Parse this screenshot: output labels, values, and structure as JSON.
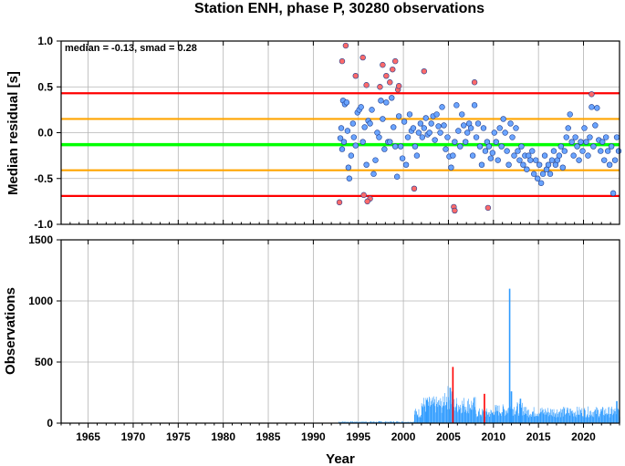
{
  "chart_data": [
    {
      "type": "scatter",
      "title": "Station ENH, phase P, 30280 observations",
      "xlabel": "",
      "ylabel": "Median residual [s]",
      "annotation": "median = -0.13, smad = 0.28",
      "xlim": [
        1962,
        2024
      ],
      "ylim": [
        -1.0,
        1.0
      ],
      "yticks": [
        "1.0",
        "0.5",
        "0.0",
        "-0.5",
        "-1.0"
      ],
      "grid": true,
      "reference_lines": [
        {
          "value": 0.43,
          "color": "#ff0000"
        },
        {
          "value": 0.15,
          "color": "#ffa500"
        },
        {
          "value": -0.13,
          "color": "#00ff00"
        },
        {
          "value": -0.41,
          "color": "#ffa500"
        },
        {
          "value": -0.69,
          "color": "#ff0000"
        }
      ],
      "series": [
        {
          "color": "#ff6a6a",
          "points": [
            [
              1992.9,
              -0.76
            ],
            [
              1993.6,
              0.95
            ],
            [
              1993.2,
              0.78
            ],
            [
              1994.7,
              0.62
            ],
            [
              1995.5,
              0.82
            ],
            [
              1995.9,
              0.52
            ],
            [
              1996.3,
              -0.72
            ],
            [
              1996.0,
              -0.75
            ],
            [
              1997.4,
              0.5
            ],
            [
              1997.7,
              0.74
            ],
            [
              1998.1,
              0.62
            ],
            [
              1998.5,
              0.55
            ],
            [
              1998.8,
              0.69
            ],
            [
              1999.1,
              0.78
            ],
            [
              1999.4,
              0.47
            ],
            [
              1995.6,
              -0.68
            ],
            [
              1999.5,
              0.51
            ],
            [
              2001.2,
              -0.61
            ],
            [
              2002.3,
              0.67
            ],
            [
              2005.6,
              -0.81
            ],
            [
              2005.7,
              -0.85
            ],
            [
              2007.9,
              0.55
            ],
            [
              2009.4,
              -0.82
            ],
            [
              2020.9,
              0.42
            ]
          ]
        },
        {
          "color": "#6aa4ff",
          "points": [
            [
              1993.0,
              -0.06
            ],
            [
              1993.1,
              0.05
            ],
            [
              1993.2,
              -0.18
            ],
            [
              1993.3,
              0.35
            ],
            [
              1993.4,
              -0.1
            ],
            [
              1993.5,
              0.31
            ],
            [
              1993.7,
              0.33
            ],
            [
              1993.8,
              0.02
            ],
            [
              1993.9,
              -0.38
            ],
            [
              1994.0,
              -0.5
            ],
            [
              1994.2,
              -0.25
            ],
            [
              1994.4,
              0.1
            ],
            [
              1994.5,
              -0.05
            ],
            [
              1994.7,
              -0.14
            ],
            [
              1994.9,
              0.22
            ],
            [
              1995.1,
              0.25
            ],
            [
              1995.3,
              0.28
            ],
            [
              1995.5,
              -0.1
            ],
            [
              1995.7,
              0.06
            ],
            [
              1995.9,
              -0.35
            ],
            [
              1996.1,
              0.13
            ],
            [
              1996.3,
              0.1
            ],
            [
              1996.5,
              0.25
            ],
            [
              1996.7,
              -0.45
            ],
            [
              1996.9,
              -0.3
            ],
            [
              1997.1,
              0.0
            ],
            [
              1997.3,
              -0.05
            ],
            [
              1997.5,
              0.35
            ],
            [
              1997.7,
              0.15
            ],
            [
              1997.9,
              -0.18
            ],
            [
              1998.1,
              0.33
            ],
            [
              1998.3,
              -0.1
            ],
            [
              1998.5,
              -0.1
            ],
            [
              1998.7,
              0.38
            ],
            [
              1998.9,
              0.06
            ],
            [
              1999.1,
              -0.15
            ],
            [
              1999.3,
              -0.48
            ],
            [
              1999.5,
              0.18
            ],
            [
              1999.7,
              -0.15
            ],
            [
              1999.9,
              -0.28
            ],
            [
              2000.1,
              0.12
            ],
            [
              2000.3,
              -0.35
            ],
            [
              2000.5,
              -0.05
            ],
            [
              2000.7,
              0.2
            ],
            [
              2000.9,
              0.02
            ],
            [
              2001.1,
              0.05
            ],
            [
              2001.3,
              -0.15
            ],
            [
              2001.5,
              -0.25
            ],
            [
              2001.7,
              0.0
            ],
            [
              2001.9,
              0.1
            ],
            [
              2002.1,
              -0.05
            ],
            [
              2002.3,
              0.05
            ],
            [
              2002.5,
              0.16
            ],
            [
              2002.7,
              -0.02
            ],
            [
              2002.9,
              0.0
            ],
            [
              2003.1,
              0.1
            ],
            [
              2003.3,
              0.18
            ],
            [
              2003.5,
              -0.08
            ],
            [
              2003.7,
              0.2
            ],
            [
              2003.9,
              0.07
            ],
            [
              2004.1,
              0.0
            ],
            [
              2004.3,
              0.28
            ],
            [
              2004.5,
              0.08
            ],
            [
              2004.7,
              -0.18
            ],
            [
              2004.9,
              -0.05
            ],
            [
              2005.1,
              -0.26
            ],
            [
              2005.3,
              -0.38
            ],
            [
              2005.5,
              -0.25
            ],
            [
              2005.7,
              -0.1
            ],
            [
              2005.9,
              0.3
            ],
            [
              2006.1,
              0.02
            ],
            [
              2006.3,
              -0.15
            ],
            [
              2006.5,
              0.2
            ],
            [
              2006.7,
              0.08
            ],
            [
              2006.9,
              -0.1
            ],
            [
              2007.1,
              0.0
            ],
            [
              2007.3,
              0.1
            ],
            [
              2007.5,
              0.05
            ],
            [
              2007.7,
              -0.25
            ],
            [
              2007.9,
              0.3
            ],
            [
              2008.1,
              -0.05
            ],
            [
              2008.3,
              0.1
            ],
            [
              2008.5,
              -0.15
            ],
            [
              2008.7,
              -0.35
            ],
            [
              2008.9,
              0.05
            ],
            [
              2009.1,
              -0.2
            ],
            [
              2009.3,
              -0.1
            ],
            [
              2009.5,
              -0.15
            ],
            [
              2009.7,
              -0.28
            ],
            [
              2009.9,
              -0.22
            ],
            [
              2010.1,
              0.0
            ],
            [
              2010.3,
              -0.1
            ],
            [
              2010.5,
              -0.3
            ],
            [
              2010.7,
              0.05
            ],
            [
              2010.9,
              -0.15
            ],
            [
              2011.1,
              0.15
            ],
            [
              2011.3,
              0.0
            ],
            [
              2011.5,
              -0.2
            ],
            [
              2011.7,
              -0.35
            ],
            [
              2011.9,
              0.1
            ],
            [
              2012.1,
              -0.05
            ],
            [
              2012.3,
              -0.25
            ],
            [
              2012.5,
              0.05
            ],
            [
              2012.7,
              -0.2
            ],
            [
              2012.9,
              -0.3
            ],
            [
              2013.1,
              -0.15
            ],
            [
              2013.3,
              -0.35
            ],
            [
              2013.5,
              -0.25
            ],
            [
              2013.7,
              -0.4
            ],
            [
              2013.9,
              -0.25
            ],
            [
              2014.1,
              -0.3
            ],
            [
              2014.3,
              -0.2
            ],
            [
              2014.5,
              -0.45
            ],
            [
              2014.7,
              -0.3
            ],
            [
              2014.9,
              -0.5
            ],
            [
              2015.1,
              -0.35
            ],
            [
              2015.3,
              -0.55
            ],
            [
              2015.5,
              -0.45
            ],
            [
              2015.7,
              -0.25
            ],
            [
              2015.9,
              -0.4
            ],
            [
              2016.1,
              -0.35
            ],
            [
              2016.3,
              -0.45
            ],
            [
              2016.5,
              -0.3
            ],
            [
              2016.7,
              -0.2
            ],
            [
              2016.9,
              -0.35
            ],
            [
              2017.1,
              -0.3
            ],
            [
              2017.3,
              -0.25
            ],
            [
              2017.5,
              -0.15
            ],
            [
              2017.7,
              -0.38
            ],
            [
              2017.9,
              -0.2
            ],
            [
              2018.1,
              -0.05
            ],
            [
              2018.3,
              0.05
            ],
            [
              2018.5,
              0.2
            ],
            [
              2018.7,
              -0.1
            ],
            [
              2018.9,
              -0.25
            ],
            [
              2019.1,
              -0.05
            ],
            [
              2019.3,
              -0.15
            ],
            [
              2019.5,
              -0.3
            ],
            [
              2019.7,
              -0.1
            ],
            [
              2019.9,
              -0.2
            ],
            [
              2020.1,
              0.05
            ],
            [
              2020.3,
              -0.1
            ],
            [
              2020.5,
              -0.25
            ],
            [
              2020.7,
              -0.05
            ],
            [
              2020.9,
              0.28
            ],
            [
              2021.1,
              -0.15
            ],
            [
              2021.3,
              0.08
            ],
            [
              2021.5,
              0.27
            ],
            [
              2021.7,
              -0.08
            ],
            [
              2021.9,
              -0.2
            ],
            [
              2022.1,
              -0.1
            ],
            [
              2022.3,
              -0.3
            ],
            [
              2022.5,
              -0.05
            ],
            [
              2022.7,
              -0.2
            ],
            [
              2022.9,
              -0.35
            ],
            [
              2023.1,
              -0.15
            ],
            [
              2023.3,
              -0.66
            ],
            [
              2023.5,
              -0.3
            ],
            [
              2023.7,
              -0.05
            ],
            [
              2023.9,
              -0.2
            ]
          ]
        }
      ]
    },
    {
      "type": "bar",
      "title": "",
      "xlabel": "Year",
      "ylabel": "Observations",
      "xlim": [
        1962,
        2024
      ],
      "ylim": [
        0,
        1500
      ],
      "xticks": [
        "1965",
        "1970",
        "1975",
        "1980",
        "1985",
        "1990",
        "1995",
        "2000",
        "2005",
        "2010",
        "2015",
        "2020"
      ],
      "yticks": [
        "1500",
        "1000",
        "500",
        "0"
      ],
      "grid": true,
      "bar_color": "#2e9bff",
      "highlight_color": "#ff0000",
      "segments": [
        {
          "start": 1992.8,
          "end": 2001.2,
          "level": 12
        },
        {
          "start": 2001.2,
          "end": 2002.0,
          "level": 95
        },
        {
          "start": 2002.0,
          "end": 2004.5,
          "level": 170
        },
        {
          "start": 2004.5,
          "end": 2005.5,
          "level": 240
        },
        {
          "start": 2005.5,
          "end": 2008.0,
          "level": 170
        },
        {
          "start": 2008.0,
          "end": 2010.0,
          "level": 95
        },
        {
          "start": 2010.0,
          "end": 2011.6,
          "level": 120
        },
        {
          "start": 2011.6,
          "end": 2013.5,
          "level": 135
        },
        {
          "start": 2013.5,
          "end": 2024.0,
          "level": 105
        }
      ],
      "spikes": [
        {
          "year": 2011.8,
          "value": 1100,
          "color": "#2e9bff"
        },
        {
          "year": 2005.5,
          "value": 460,
          "color": "#ff0000"
        },
        {
          "year": 2005.2,
          "value": 290,
          "color": "#2e9bff"
        },
        {
          "year": 2009.0,
          "value": 240,
          "color": "#ff0000"
        },
        {
          "year": 2012.0,
          "value": 260,
          "color": "#2e9bff"
        },
        {
          "year": 2013.0,
          "value": 200,
          "color": "#2e9bff"
        },
        {
          "year": 2002.6,
          "value": 190,
          "color": "#2e9bff"
        },
        {
          "year": 2023.7,
          "value": 180,
          "color": "#2e9bff"
        }
      ]
    }
  ]
}
